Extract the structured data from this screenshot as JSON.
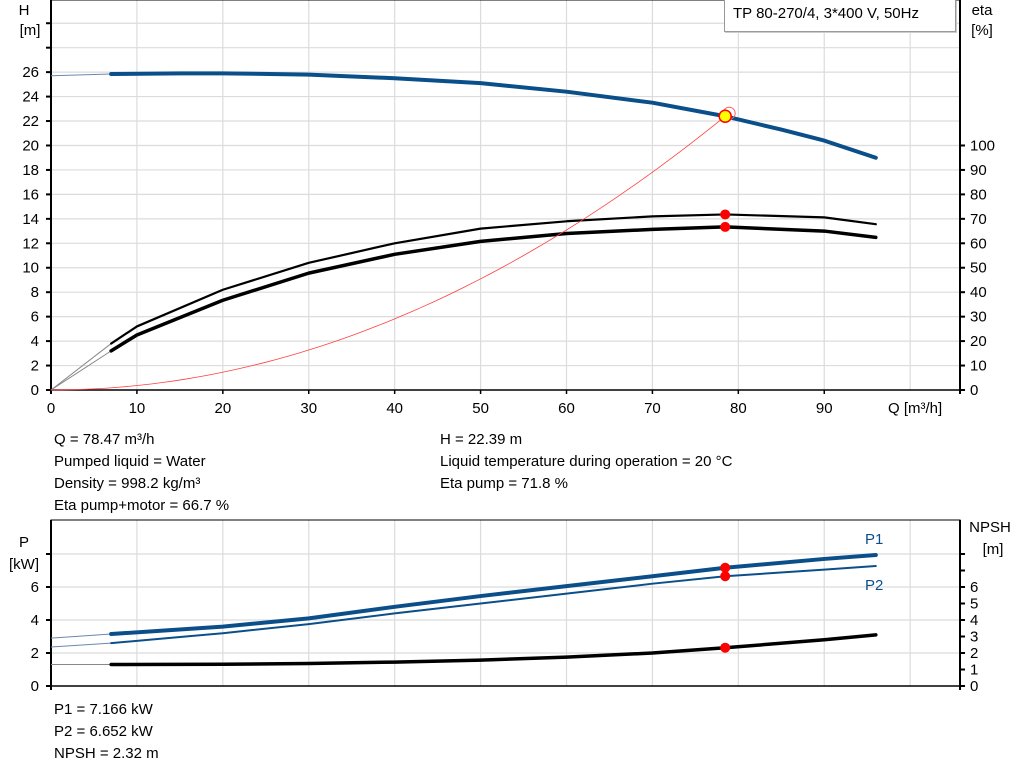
{
  "legend_title": "TP 80-270/4, 3*400 V, 50Hz",
  "chart_data": [
    {
      "type": "line",
      "xlabel": "Q [m³/h]",
      "xlim": [
        0,
        105.8
      ],
      "xticks": [
        0,
        10,
        20,
        30,
        40,
        50,
        60,
        70,
        80,
        90
      ],
      "y_left": {
        "label_line1": "H",
        "label_line2": "[m]",
        "lim": [
          0,
          31.9
        ],
        "ticks": [
          0,
          2,
          4,
          6,
          8,
          10,
          12,
          14,
          16,
          18,
          20,
          22,
          24,
          26
        ],
        "grid": [
          0,
          2,
          4,
          6,
          8,
          10,
          12,
          14,
          16,
          18,
          20,
          22,
          24,
          26,
          28,
          30
        ]
      },
      "y_right": {
        "label_line1": "eta",
        "label_line2": "[%]",
        "lim": [
          0,
          159.5
        ],
        "ticks": [
          0,
          10,
          20,
          30,
          40,
          50,
          60,
          70,
          80,
          90,
          100
        ]
      },
      "grid": true,
      "series": [
        {
          "key": "H",
          "axis": "left",
          "color": "#0b4f8a",
          "width": 4,
          "x": [
            7,
            15,
            20,
            30,
            40,
            50,
            60,
            70,
            78.47,
            85,
            90,
            96
          ],
          "y": [
            25.85,
            25.9,
            25.9,
            25.8,
            25.5,
            25.1,
            24.4,
            23.5,
            22.39,
            21.3,
            20.4,
            19.0
          ],
          "extension": {
            "x": [
              0,
              7
            ],
            "y": [
              25.7,
              25.85
            ]
          }
        },
        {
          "key": "eta_pump",
          "axis": "right",
          "color": "#000000",
          "width": 2.2,
          "x": [
            7,
            10,
            20,
            30,
            40,
            50,
            60,
            70,
            78.47,
            90,
            96
          ],
          "y": [
            19,
            26,
            41,
            52,
            60,
            66,
            69,
            71,
            71.8,
            70.6,
            67.8
          ],
          "extension": {
            "x": [
              0,
              7
            ],
            "y": [
              0,
              19
            ]
          }
        },
        {
          "key": "eta_pump_motor",
          "axis": "right",
          "color": "#000000",
          "width": 3.5,
          "x": [
            7,
            10,
            20,
            30,
            40,
            50,
            60,
            70,
            78.47,
            90,
            96
          ],
          "y": [
            16,
            22.5,
            36.7,
            47.8,
            55.5,
            60.8,
            64,
            65.7,
            66.7,
            65,
            62.4
          ],
          "extension": {
            "x": [
              0,
              7
            ],
            "y": [
              0,
              16
            ]
          }
        },
        {
          "key": "system_curve",
          "axis": "left",
          "color": "#ff4040",
          "width": 0.8,
          "type": "quadratic",
          "x": [
            0,
            10,
            20,
            30,
            40,
            50,
            60,
            70,
            78.47
          ],
          "y": [
            0,
            0.36,
            1.45,
            3.27,
            5.82,
            9.09,
            13.09,
            17.82,
            22.39
          ]
        }
      ],
      "operating_point": {
        "Q": 78.47,
        "H": 22.39,
        "eta_pump": 71.8,
        "eta_pump_motor": 66.7,
        "marker_color": "#ffff00",
        "dot_color": "#ff0000"
      }
    },
    {
      "type": "line",
      "xlim": [
        0,
        105.8
      ],
      "y_left": {
        "label_line1": "P",
        "label_line2": "[kW]",
        "lim": [
          0,
          10.06
        ],
        "ticks": [
          0,
          2,
          4,
          6
        ],
        "grid": [
          0,
          2,
          4,
          6,
          8
        ]
      },
      "y_right": {
        "label_line1": "NPSH",
        "label_line2": "[m]",
        "lim": [
          0,
          10.06
        ],
        "ticks": [
          0,
          1,
          2,
          3,
          4,
          5,
          6
        ],
        "minor_ticks": [
          7,
          8
        ]
      },
      "grid": true,
      "series": [
        {
          "key": "P1",
          "name": "P1",
          "axis": "left",
          "color": "#0b4f8a",
          "width": 4,
          "x": [
            7,
            20,
            30,
            40,
            50,
            60,
            70,
            78.47,
            90,
            96
          ],
          "y": [
            3.15,
            3.6,
            4.1,
            4.8,
            5.45,
            6.05,
            6.65,
            7.166,
            7.7,
            7.94
          ],
          "extension": {
            "x": [
              0,
              7
            ],
            "y": [
              2.9,
              3.15
            ]
          }
        },
        {
          "key": "P2",
          "name": "P2",
          "axis": "left",
          "color": "#0b4f8a",
          "width": 2,
          "x": [
            7,
            20,
            30,
            40,
            50,
            60,
            70,
            78.47,
            90,
            96
          ],
          "y": [
            2.6,
            3.2,
            3.75,
            4.4,
            5.0,
            5.6,
            6.2,
            6.652,
            7.05,
            7.27
          ],
          "extension": {
            "x": [
              0,
              7
            ],
            "y": [
              2.36,
              2.6
            ]
          }
        },
        {
          "key": "NPSH",
          "axis": "right",
          "color": "#000000",
          "width": 3.5,
          "x": [
            7,
            20,
            30,
            40,
            50,
            60,
            70,
            78.47,
            90,
            96
          ],
          "y": [
            1.3,
            1.32,
            1.36,
            1.45,
            1.57,
            1.75,
            2.0,
            2.32,
            2.8,
            3.1
          ],
          "extension": {
            "x": [
              0,
              7
            ],
            "y": [
              1.3,
              1.3
            ]
          }
        }
      ],
      "operating_point": {
        "Q": 78.47,
        "P1": 7.166,
        "P2": 6.652,
        "NPSH": 2.32,
        "dot_color": "#ff0000"
      }
    }
  ],
  "info_top_left": [
    "Q = 78.47 m³/h",
    "Pumped liquid = Water",
    "Density = 998.2 kg/m³",
    "Eta pump+motor = 66.7 %"
  ],
  "info_top_right": [
    "H = 22.39 m",
    "Liquid temperature during operation = 20 °C",
    "Eta pump = 71.8 %"
  ],
  "info_bottom": [
    "P1 = 7.166 kW",
    "P2 = 6.652 kW",
    "NPSH = 2.32 m"
  ]
}
